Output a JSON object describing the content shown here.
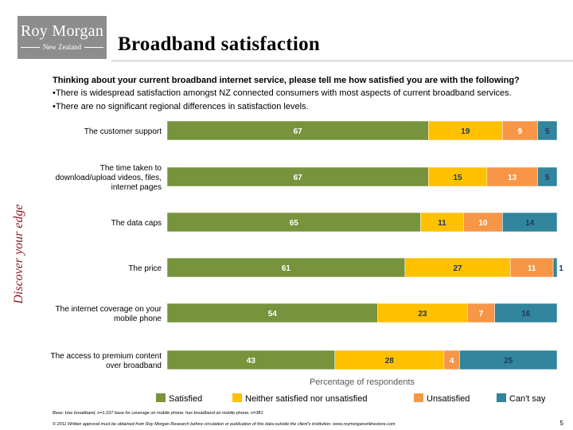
{
  "brand": {
    "name": "Roy Morgan",
    "region": "New Zealand",
    "tagline": "Discover your edge"
  },
  "title": "Broadband satisfaction",
  "question": "Thinking about your current broadband internet service, please tell me how satisfied you are with the following?",
  "bullets": [
    "•There is widespread satisfaction amongst NZ connected consumers with most aspects of current broadband services.",
    "•There are no significant regional differences in satisfaction levels."
  ],
  "footnote": "Base: Has broadband, n=1,037 base for coverage on mobile phone: has broadband on mobile phone, n=381",
  "copyright": "© 2011 Written approval must be obtained from Roy Morgan Research before circulation or publication of this data outside the client's institution. www.roymorganonlinestore.com",
  "page_number": "5",
  "chart_data": {
    "type": "bar",
    "orientation": "horizontal",
    "stacked": true,
    "xlabel": "Percentage of respondents",
    "xlim": [
      0,
      100
    ],
    "grid": false,
    "legend_position": "bottom",
    "categories": [
      [
        "The customer support"
      ],
      [
        "The time taken to",
        "download/upload videos, files,",
        "internet pages"
      ],
      [
        "The data caps"
      ],
      [
        "The price"
      ],
      [
        "The internet coverage on your",
        "mobile phone"
      ],
      [
        "The access to premium content",
        "over broadband"
      ]
    ],
    "series": [
      {
        "name": "Satisfied",
        "color": "#77933c",
        "label_color": "#ffffff",
        "values": [
          67,
          67,
          65,
          61,
          54,
          43
        ]
      },
      {
        "name": "Neither satisfied nor unsatisfied",
        "color": "#ffc000",
        "label_color": "#1f3864",
        "values": [
          19,
          15,
          11,
          27,
          23,
          28
        ]
      },
      {
        "name": "Unsatisfied",
        "color": "#f79646",
        "label_color": "#ffffff",
        "values": [
          9,
          13,
          10,
          11,
          7,
          4
        ]
      },
      {
        "name": "Can't say",
        "color": "#31859c",
        "label_color": "#1f3864",
        "values": [
          5,
          5,
          14,
          1,
          16,
          25
        ]
      }
    ]
  }
}
